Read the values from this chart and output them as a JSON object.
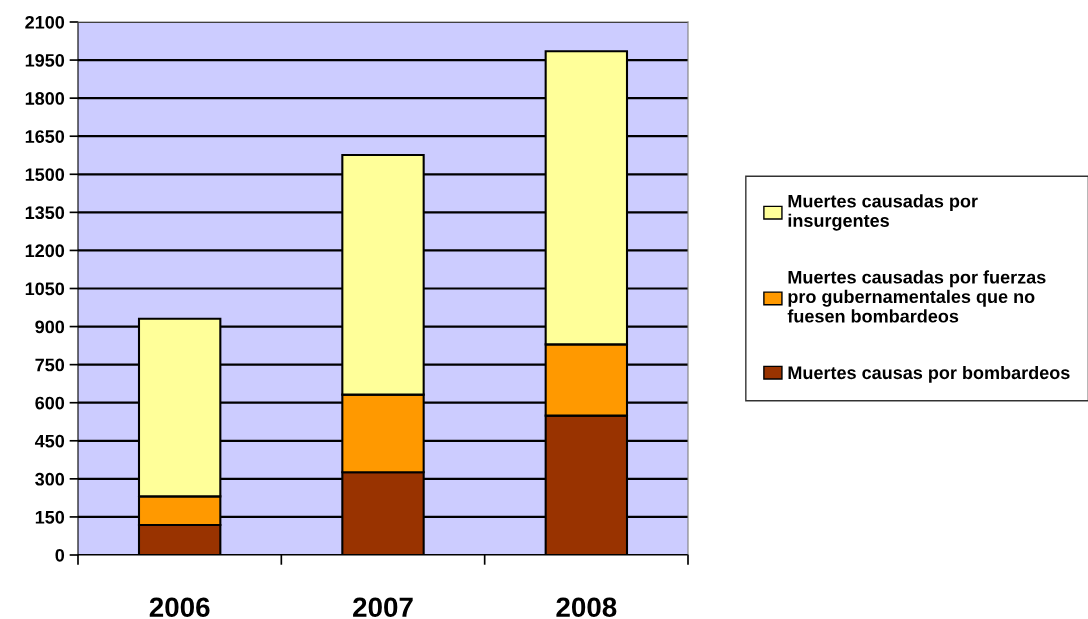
{
  "chart_data": {
    "type": "bar",
    "stacked": true,
    "categories": [
      "2006",
      "2007",
      "2008"
    ],
    "series": [
      {
        "name": "Muertes causas por bombardeos",
        "color": "#993300",
        "values": [
          118,
          326,
          549
        ]
      },
      {
        "name": "Muertes causadas por fuerzas pro gubernamentales que no fuesen bombardeos",
        "color": "#ff9900",
        "values": [
          113,
          306,
          281
        ]
      },
      {
        "name": "Muertes causadas por insurgentes",
        "color": "#ffff99",
        "values": [
          700,
          944,
          1155
        ]
      }
    ],
    "ylim": [
      0,
      2100
    ],
    "yticks": [
      0,
      150,
      300,
      450,
      600,
      750,
      900,
      1050,
      1200,
      1350,
      1500,
      1650,
      1800,
      1950,
      2100
    ],
    "grid": "y",
    "legend": "right"
  }
}
